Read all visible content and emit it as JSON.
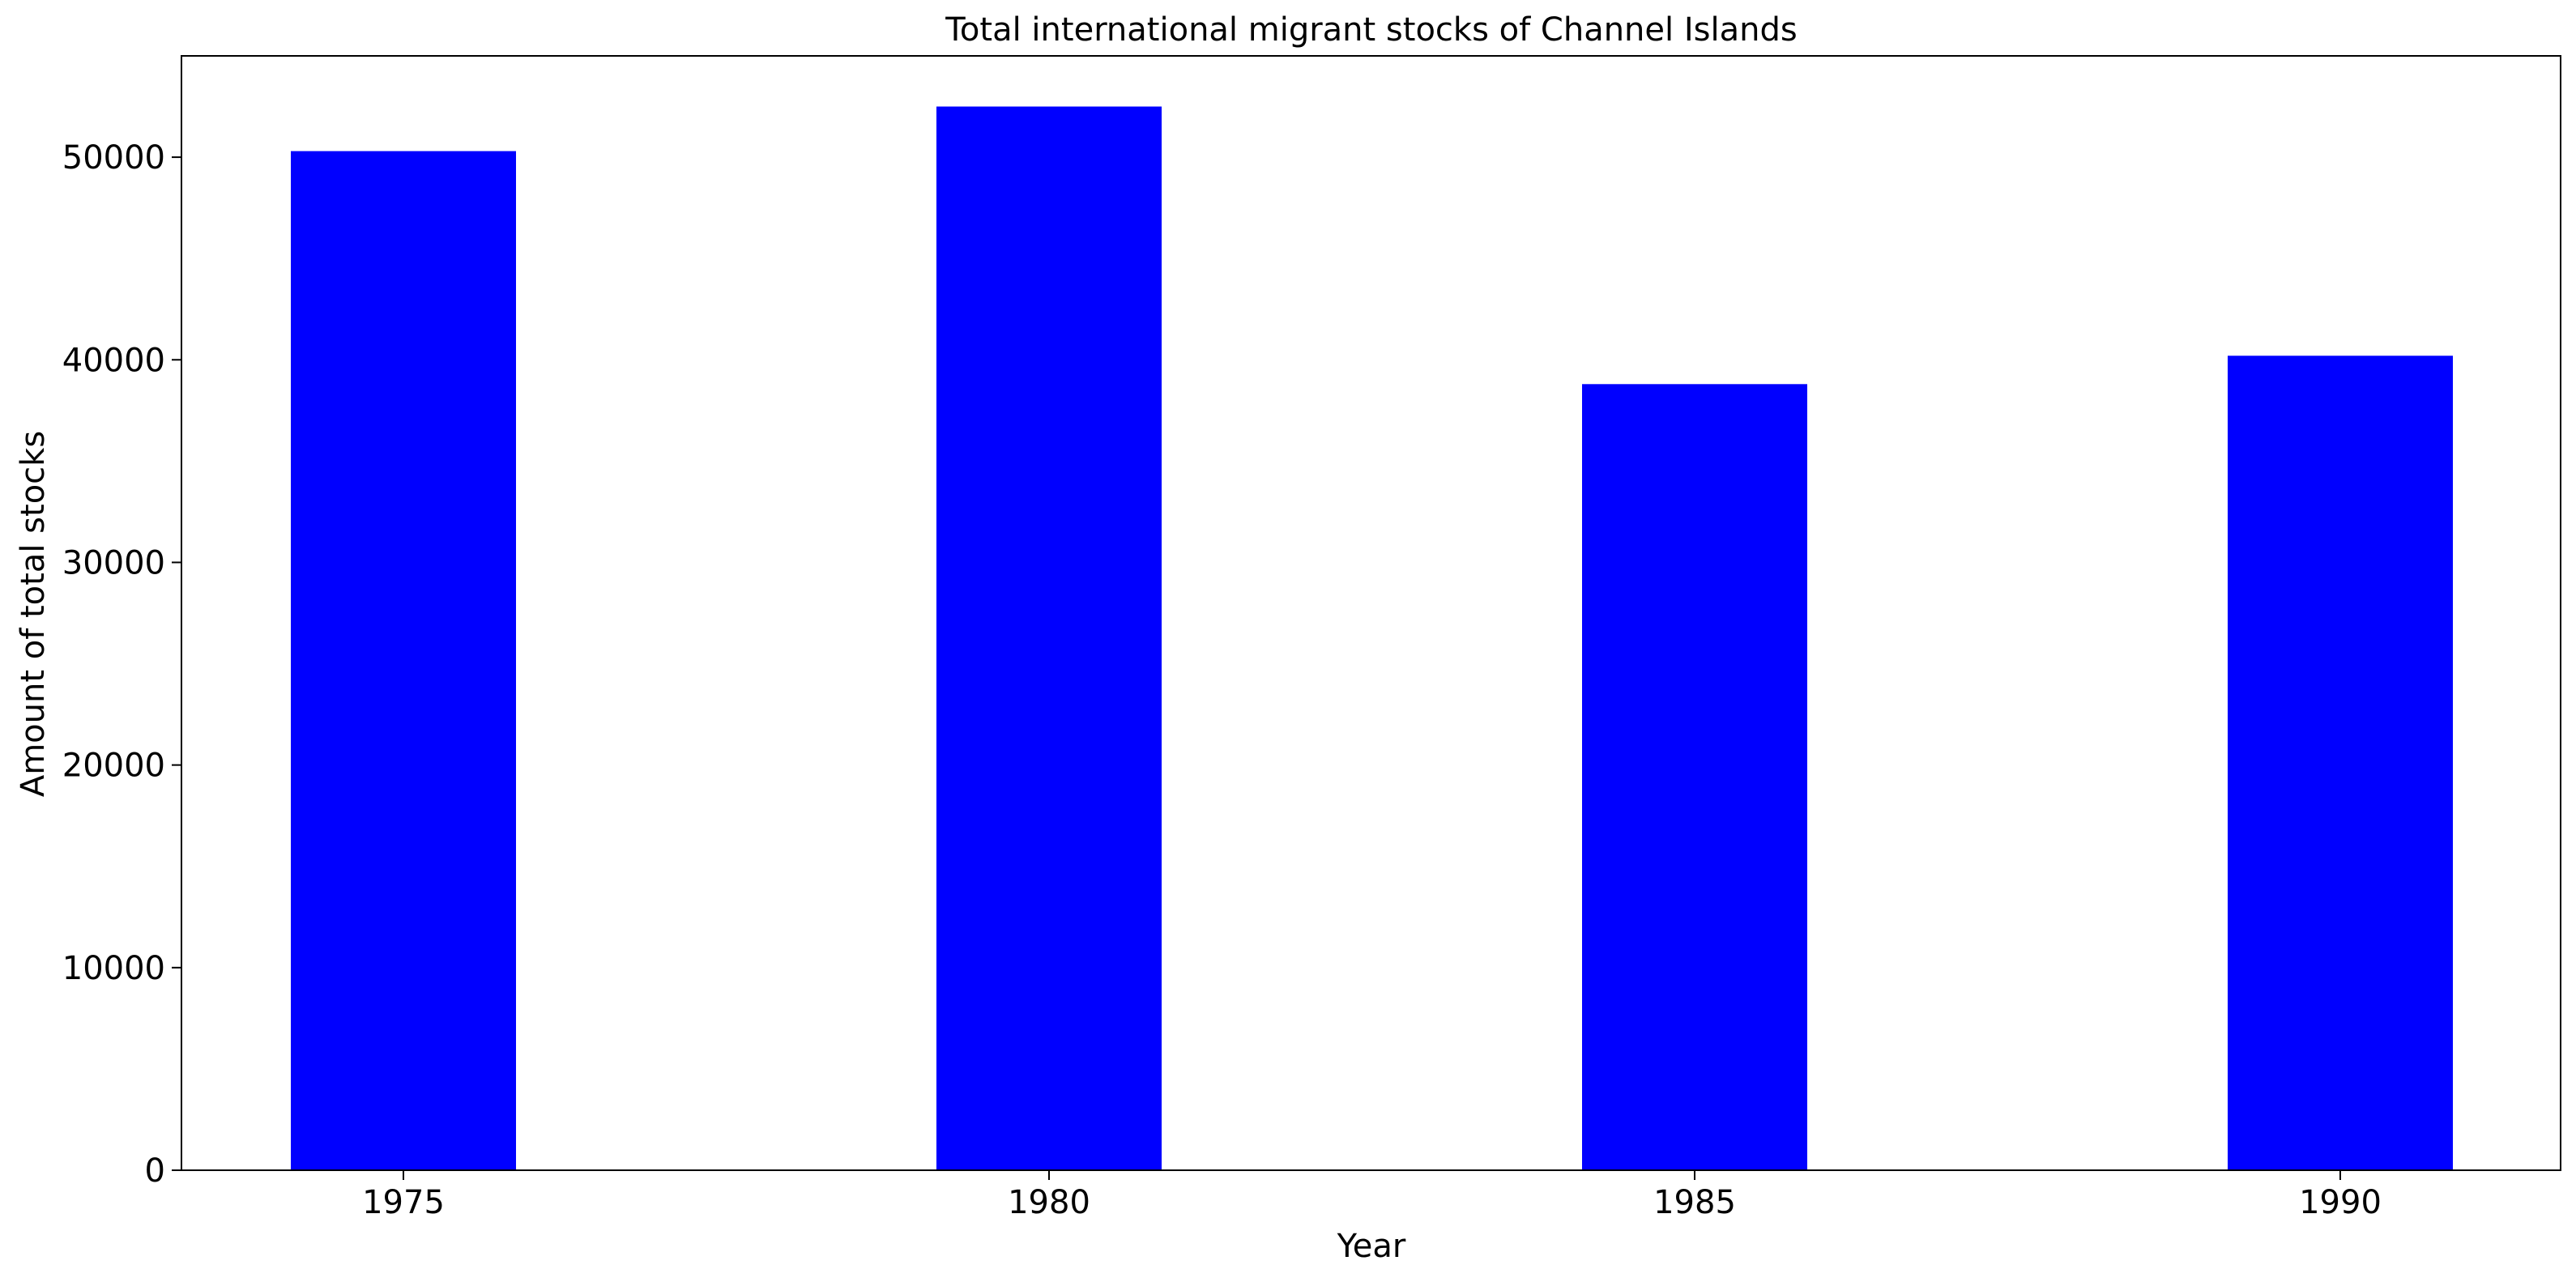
{
  "chart_data": {
    "type": "bar",
    "title": "Total international migrant stocks of Channel Islands",
    "xlabel": "Year",
    "ylabel": "Amount of total stocks",
    "categories": [
      "1975",
      "1980",
      "1985",
      "1990"
    ],
    "values": [
      50300,
      52500,
      38800,
      40200
    ],
    "ylim": [
      0,
      55000
    ],
    "yticks": [
      0,
      10000,
      20000,
      30000,
      40000,
      50000
    ],
    "grid": false,
    "legend": "none",
    "bar_color": "#0000ff"
  }
}
